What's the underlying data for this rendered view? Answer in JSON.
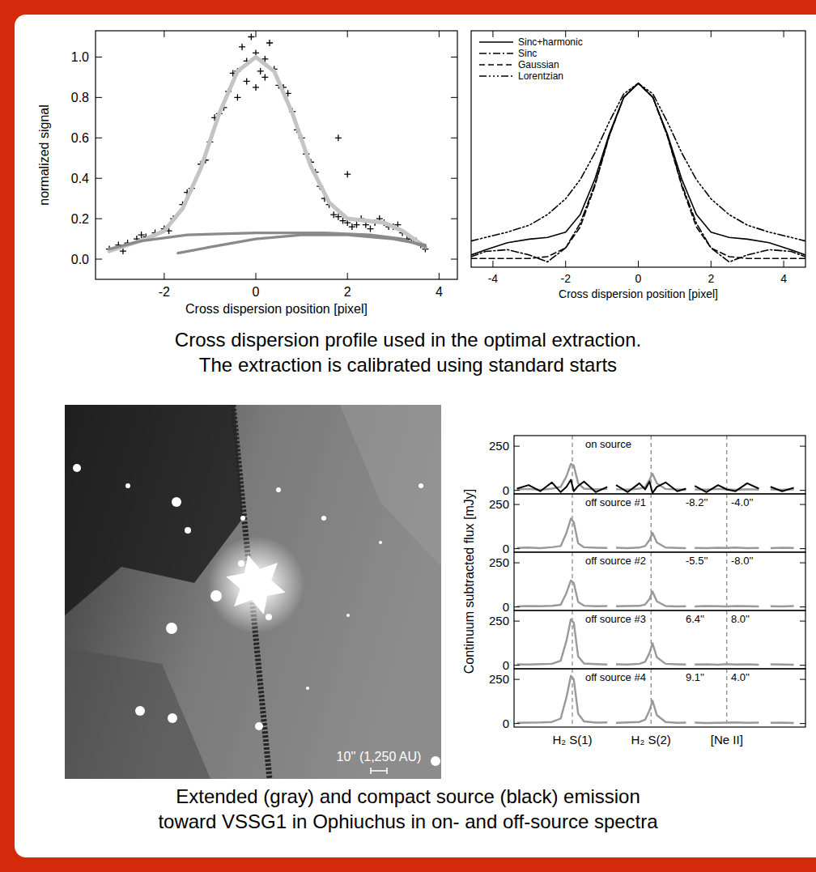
{
  "chart_data": [
    {
      "type": "scatter",
      "xlabel": "Cross dispersion position [pixel]",
      "ylabel": "normalized signal",
      "xlim": [
        -3.5,
        4.4
      ],
      "ylim": [
        -0.1,
        1.13
      ],
      "xticks": [
        -2,
        0,
        2,
        4
      ],
      "yticks": [
        {
          "value": 0,
          "label": "0.0"
        },
        {
          "value": 0.2,
          "label": "0.2"
        },
        {
          "value": 0.4,
          "label": "0.4"
        },
        {
          "value": 0.6,
          "label": "0.6"
        },
        {
          "value": 0.8,
          "label": "0.8"
        },
        {
          "value": 1,
          "label": "1.0"
        }
      ],
      "series": [
        {
          "type": "scatter",
          "color": "#000000",
          "marker": "plus",
          "x": [
            -3.2,
            -3.0,
            -2.8,
            -2.6,
            -2.4,
            -2.2,
            -2.0,
            -1.8,
            -1.6,
            -1.4,
            -1.2,
            -1.0,
            -0.8,
            -0.6,
            -0.4,
            -0.2,
            0,
            0.2,
            0.4,
            0.6,
            0.8,
            1.0,
            1.2,
            1.4,
            1.6,
            1.8,
            2.0,
            2.2,
            2.4,
            2.6,
            2.8,
            3.0,
            3.2,
            3.4,
            3.6,
            3.7,
            -2.9,
            -2.5,
            -1.9,
            -1.5,
            -1.1,
            -0.9,
            -0.7,
            -0.5,
            -0.3,
            -0.1,
            0.1,
            0.3,
            0.5,
            0.7,
            0.9,
            1.1,
            1.3,
            1.5,
            1.7,
            1.9,
            2.1,
            2.3,
            2.5,
            2.7,
            2.9,
            3.1,
            3.3,
            3.5,
            0.0,
            0.2,
            -0.2,
            2.0,
            1.8,
            -0.4
          ],
          "values": [
            0.05,
            0.07,
            0.08,
            0.1,
            0.11,
            0.13,
            0.15,
            0.2,
            0.27,
            0.35,
            0.47,
            0.58,
            0.72,
            0.83,
            0.93,
            0.98,
            1.02,
            0.99,
            0.94,
            0.85,
            0.73,
            0.6,
            0.48,
            0.36,
            0.27,
            0.21,
            0.18,
            0.17,
            0.17,
            0.18,
            0.18,
            0.16,
            0.13,
            0.1,
            0.07,
            0.05,
            0.04,
            0.12,
            0.14,
            0.33,
            0.49,
            0.7,
            0.75,
            0.92,
            1.05,
            1.1,
            0.93,
            1.07,
            0.86,
            0.82,
            0.64,
            0.52,
            0.43,
            0.3,
            0.22,
            0.19,
            0.16,
            0.2,
            0.15,
            0.2,
            0.16,
            0.17,
            0.1,
            0.09,
            0.85,
            0.9,
            0.88,
            0.42,
            0.6,
            0.8
          ]
        },
        {
          "type": "line",
          "color": "#c4c4c4",
          "x": [
            -3.2,
            -2.8,
            -2.4,
            -2.0,
            -1.6,
            -1.2,
            -0.8,
            -0.4,
            0,
            0.4,
            0.8,
            1.2,
            1.6,
            2.0,
            2.4,
            2.8,
            3.2,
            3.7
          ],
          "values": [
            0.04,
            0.07,
            0.1,
            0.14,
            0.25,
            0.45,
            0.72,
            0.93,
            1.0,
            0.93,
            0.72,
            0.46,
            0.28,
            0.2,
            0.19,
            0.18,
            0.14,
            0.06
          ]
        },
        {
          "type": "line",
          "color": "#8a8a8a",
          "x": [
            -3.2,
            -2.5,
            -1.5,
            0,
            1.5,
            2.5,
            3.2,
            3.7
          ],
          "values": [
            0.05,
            0.09,
            0.12,
            0.13,
            0.13,
            0.12,
            0.1,
            0.06
          ]
        },
        {
          "type": "line",
          "color": "#8a8a8a",
          "x": [
            -1.7,
            -1,
            0,
            1,
            2,
            3,
            3.7
          ],
          "values": [
            0.03,
            0.06,
            0.1,
            0.12,
            0.12,
            0.1,
            0.07
          ]
        }
      ]
    },
    {
      "type": "line",
      "xlabel": "Cross dispersion position [pixel]",
      "xlim": [
        -4.6,
        4.6
      ],
      "ylim": [
        -0.05,
        1.3
      ],
      "xticks": [
        -4,
        -2,
        0,
        2,
        4
      ],
      "tick_labels": "x",
      "legend": "upper left",
      "x": [
        -4.6,
        -4.2,
        -3.6,
        -3.0,
        -2.5,
        -2.0,
        -1.6,
        -1.2,
        -0.8,
        -0.4,
        0,
        0.4,
        0.8,
        1.2,
        1.6,
        2.0,
        2.5,
        3.0,
        3.6,
        4.2,
        4.6
      ],
      "series": [
        {
          "name": "Sinc+harmonic",
          "color": "#000000",
          "line_style": "solid",
          "values": [
            0.02,
            0.05,
            0.09,
            0.11,
            0.12,
            0.15,
            0.25,
            0.45,
            0.71,
            0.92,
            1,
            0.92,
            0.71,
            0.45,
            0.25,
            0.15,
            0.12,
            0.11,
            0.09,
            0.05,
            0.02
          ]
        },
        {
          "name": "Sinc",
          "color": "#000000",
          "line_style": "dashdot",
          "values": [
            0.01,
            0.04,
            0.05,
            0.02,
            -0.02,
            0.06,
            0.2,
            0.42,
            0.7,
            0.92,
            1,
            0.92,
            0.7,
            0.42,
            0.2,
            0.06,
            -0.02,
            0.02,
            0.05,
            0.04,
            0.01
          ]
        },
        {
          "name": "Gaussian",
          "color": "#000000",
          "line_style": "dashed",
          "values": [
            0,
            0,
            0,
            0,
            0.01,
            0.06,
            0.18,
            0.41,
            0.7,
            0.92,
            1,
            0.92,
            0.7,
            0.41,
            0.18,
            0.06,
            0.01,
            0,
            0,
            0,
            0
          ]
        },
        {
          "name": "Lorentzian",
          "color": "#000000",
          "line_style": "dashdotdotdot",
          "values": [
            0.1,
            0.12,
            0.15,
            0.19,
            0.25,
            0.34,
            0.45,
            0.6,
            0.78,
            0.94,
            1,
            0.94,
            0.78,
            0.6,
            0.45,
            0.34,
            0.25,
            0.19,
            0.15,
            0.12,
            0.1
          ]
        }
      ]
    },
    {
      "type": "line",
      "ylabel": "Continuum subtracted flux [mJy]",
      "xlim": [
        0,
        100
      ],
      "ylim": [
        -20,
        310
      ],
      "yticks": [
        0,
        250
      ],
      "grid": true,
      "xticks": [
        {
          "value": 20,
          "label": "H₂ S(1)"
        },
        {
          "value": 47,
          "label": "H₂ S(2)"
        },
        {
          "value": 73,
          "label": "[Ne II]"
        }
      ],
      "x": [
        1,
        5,
        9,
        13,
        16,
        18,
        19.5,
        20.5,
        22,
        24,
        28,
        32,
        33,
        35,
        39,
        43,
        45,
        46.5,
        47.5,
        49,
        52,
        56,
        59,
        60,
        62,
        66,
        70,
        73,
        76,
        80,
        84,
        86,
        88,
        92,
        96
      ],
      "panels": [
        {
          "title": "on source",
          "series": [
            {
              "color": "#999999",
              "values": [
                5,
                8,
                3,
                10,
                20,
                80,
                150,
                140,
                40,
                10,
                5,
                8,
                null,
                6,
                4,
                10,
                20,
                60,
                95,
                40,
                8,
                5,
                3,
                null,
                5,
                4,
                8,
                5,
                3,
                6,
                4,
                null,
                5,
                3,
                6
              ]
            },
            {
              "color": "#000000",
              "values": [
                10,
                30,
                -5,
                45,
                -10,
                20,
                60,
                -5,
                25,
                50,
                -10,
                20,
                null,
                30,
                -10,
                40,
                5,
                50,
                -15,
                20,
                45,
                -5,
                10,
                null,
                25,
                -10,
                30,
                5,
                -5,
                40,
                10,
                null,
                20,
                -5,
                15
              ]
            }
          ]
        },
        {
          "title": "off source #1",
          "annotations": [
            "-8.2''",
            "-4.0''"
          ],
          "series": [
            {
              "color": "#999999",
              "values": [
                4,
                6,
                3,
                8,
                15,
                90,
                170,
                150,
                30,
                8,
                5,
                4,
                null,
                5,
                3,
                6,
                15,
                50,
                90,
                35,
                6,
                4,
                3,
                null,
                4,
                3,
                5,
                4,
                6,
                3,
                4,
                null,
                3,
                5,
                4
              ]
            }
          ]
        },
        {
          "title": "off source #2",
          "annotations": [
            "-5.5''",
            "-8.0''"
          ],
          "series": [
            {
              "color": "#999999",
              "values": [
                3,
                5,
                4,
                6,
                12,
                80,
                150,
                135,
                28,
                7,
                4,
                5,
                null,
                4,
                5,
                6,
                14,
                45,
                88,
                32,
                5,
                3,
                4,
                null,
                3,
                5,
                4,
                3,
                5,
                4,
                3,
                null,
                4,
                3,
                5
              ]
            }
          ]
        },
        {
          "title": "off source #3",
          "annotations": [
            "6.4''",
            "8.0''"
          ],
          "series": [
            {
              "color": "#999999",
              "values": [
                5,
                4,
                6,
                8,
                25,
                140,
                260,
                240,
                50,
                10,
                6,
                4,
                null,
                5,
                4,
                8,
                20,
                70,
                125,
                45,
                8,
                5,
                4,
                null,
                4,
                5,
                3,
                6,
                4,
                5,
                3,
                null,
                5,
                4,
                3
              ]
            }
          ]
        },
        {
          "title": "off source #4",
          "annotations": [
            "9.1''",
            "4.0''"
          ],
          "series": [
            {
              "color": "#999999",
              "values": [
                4,
                5,
                6,
                9,
                28,
                150,
                270,
                250,
                55,
                12,
                5,
                6,
                null,
                4,
                6,
                9,
                22,
                75,
                130,
                48,
                9,
                4,
                5,
                null,
                5,
                3,
                4,
                5,
                6,
                4,
                5,
                null,
                4,
                5,
                3
              ]
            }
          ]
        }
      ]
    }
  ],
  "captions": [
    [
      "Cross dispersion profile used in the optimal extraction.",
      "The extraction is calibrated using standard starts"
    ],
    [
      "Extended (gray) and compact source (black) emission",
      "toward VSSG1 in Ophiuchus in on- and off-source spectra"
    ]
  ],
  "image": {
    "scale_label": "10'' (1,250 AU)"
  }
}
